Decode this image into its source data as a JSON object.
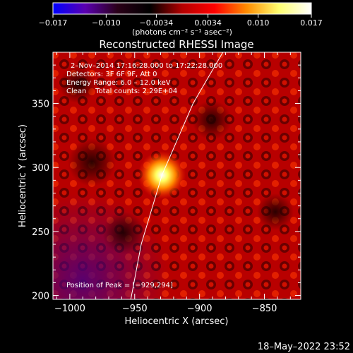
{
  "chart_data": {
    "type": "heatmap",
    "title": "Reconstructed RHESSI Image",
    "xlabel": "Heliocentric X (arcsec)",
    "ylabel": "Heliocentric Y (arcsec)",
    "xlim": [
      -1013,
      -822
    ],
    "ylim": [
      197,
      390
    ],
    "x_ticks": [
      -1000,
      -950,
      -900,
      -850
    ],
    "y_ticks": [
      200,
      250,
      300,
      350
    ],
    "x_tick_labels": [
      "−1000",
      "−950",
      "−900",
      "−850"
    ],
    "y_tick_labels": [
      "200",
      "250",
      "300",
      "350"
    ],
    "peak": {
      "x": -929,
      "y": 294
    },
    "limb_line": [
      [
        -953,
        197
      ],
      [
        -945,
        240
      ],
      [
        -929,
        294
      ],
      [
        -905,
        350
      ],
      [
        -882,
        390
      ]
    ],
    "colorbar": {
      "min": -0.017,
      "max": 0.017,
      "ticks": [
        -0.017,
        -0.01,
        -0.0034,
        0.0034,
        0.01,
        0.017
      ],
      "tick_labels": [
        "−0.017",
        "−0.010",
        "−0.0034",
        "0.0034",
        "0.010",
        "0.017"
      ],
      "units": "(photons cm⁻² s⁻¹ asec⁻²)",
      "colors": [
        "#0000ff",
        "#5a00b0",
        "#2a0018",
        "#000000",
        "#b40000",
        "#ff0000",
        "#ff8c00",
        "#ffff70",
        "#ffffff"
      ]
    },
    "annotations": {
      "time_range": "2–Nov–2014 17:16:28.000 to 17:22:28.000",
      "detectors": "Detectors: 3F 6F 9F, Att 0",
      "energy_range": "Energy Range: 6.0 – 12.0 keV",
      "clean_counts": "Clean    Total counts: 2.29E+04",
      "peak_label": "Position of Peak = [−929,294]"
    },
    "timestamp": "18–May–2022 23:52"
  }
}
